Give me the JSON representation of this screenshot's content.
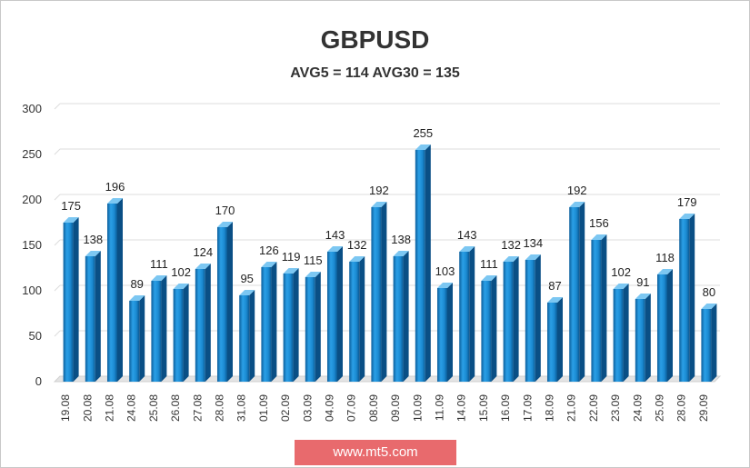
{
  "chart_data": {
    "type": "bar",
    "title": "GBPUSD",
    "subtitle": "AVG5 = 114 AVG30 = 135",
    "categories": [
      "19.08",
      "20.08",
      "21.08",
      "24.08",
      "25.08",
      "26.08",
      "27.08",
      "28.08",
      "31.08",
      "01.09",
      "02.09",
      "03.09",
      "04.09",
      "07.09",
      "08.09",
      "09.09",
      "10.09",
      "11.09",
      "14.09",
      "15.09",
      "16.09",
      "17.09",
      "18.09",
      "21.09",
      "22.09",
      "23.09",
      "24.09",
      "25.09",
      "28.09",
      "29.09"
    ],
    "values": [
      175,
      138,
      196,
      89,
      111,
      102,
      124,
      170,
      95,
      126,
      119,
      115,
      143,
      132,
      192,
      138,
      255,
      103,
      143,
      111,
      132,
      134,
      87,
      192,
      156,
      102,
      91,
      118,
      179,
      80
    ],
    "yticks": [
      0,
      50,
      100,
      150,
      200,
      250,
      300
    ],
    "ylim": [
      0,
      300
    ],
    "grid": true,
    "data_labels": true,
    "bar_color": "#1e8fd6"
  },
  "footer": {
    "url": "www.mt5.com"
  }
}
